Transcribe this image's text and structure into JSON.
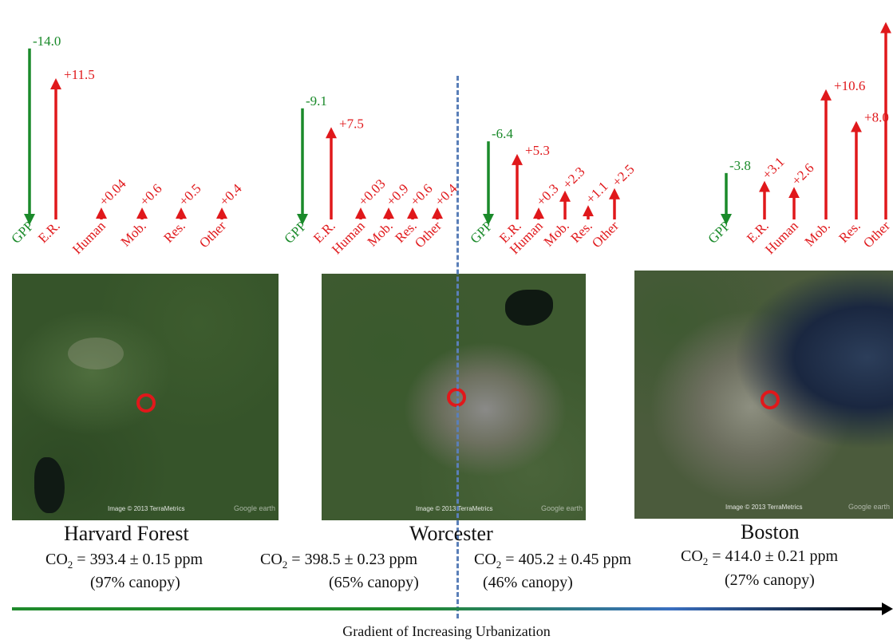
{
  "colors": {
    "uptake": "#1a8a2a",
    "emission": "#e0181b",
    "divider": "#5a7fb8"
  },
  "flux_groups": [
    {
      "site": "harvard",
      "fluxes": [
        {
          "label": "GPP",
          "value": "-14.0",
          "mag": -14.0
        },
        {
          "label": "E.R.",
          "value": "+11.5",
          "mag": 11.5
        },
        {
          "label": "Human",
          "value": "+0.04",
          "mag": 0.04
        },
        {
          "label": "Mob.",
          "value": "+0.6",
          "mag": 0.6
        },
        {
          "label": "Res.",
          "value": "+0.5",
          "mag": 0.5
        },
        {
          "label": "Other",
          "value": "+0.4",
          "mag": 0.4
        }
      ]
    },
    {
      "site": "worcester-a",
      "fluxes": [
        {
          "label": "GPP",
          "value": "-9.1",
          "mag": -9.1
        },
        {
          "label": "E.R.",
          "value": "+7.5",
          "mag": 7.5
        },
        {
          "label": "Human",
          "value": "+0.03",
          "mag": 0.03
        },
        {
          "label": "Mob.",
          "value": "+0.9",
          "mag": 0.9
        },
        {
          "label": "Res.",
          "value": "+0.6",
          "mag": 0.6
        },
        {
          "label": "Other",
          "value": "+0.4",
          "mag": 0.4
        }
      ]
    },
    {
      "site": "worcester-b",
      "fluxes": [
        {
          "label": "GPP",
          "value": "-6.4",
          "mag": -6.4
        },
        {
          "label": "E.R.",
          "value": "+5.3",
          "mag": 5.3
        },
        {
          "label": "Human",
          "value": "+0.3",
          "mag": 0.3
        },
        {
          "label": "Mob.",
          "value": "+2.3",
          "mag": 2.3
        },
        {
          "label": "Res.",
          "value": "+1.1",
          "mag": 1.1
        },
        {
          "label": "Other",
          "value": "+2.5",
          "mag": 2.5
        }
      ]
    },
    {
      "site": "boston",
      "fluxes": [
        {
          "label": "GPP",
          "value": "-3.8",
          "mag": -3.8
        },
        {
          "label": "E.R.",
          "value": "+3.1",
          "mag": 3.1
        },
        {
          "label": "Human",
          "value": "+2.6",
          "mag": 2.6
        },
        {
          "label": "Mob.",
          "value": "+10.6",
          "mag": 10.6
        },
        {
          "label": "Res.",
          "value": "+8.0",
          "mag": 8.0
        },
        {
          "label": "Other",
          "value": "+16.1",
          "mag": 16.1
        }
      ]
    }
  ],
  "sites": {
    "harvard": {
      "name": "Harvard Forest",
      "co2_prefix": "CO",
      "co2_sub": "2",
      "co2_value": " = 393.4 ± 0.15 ppm",
      "canopy": "(97% canopy)",
      "watermark": "Image © 2013 TerraMetrics",
      "watermark2": "Google earth"
    },
    "worcester": {
      "name": "Worcester",
      "watermark": "Image © 2013 TerraMetrics",
      "watermark2": "Google earth",
      "left": {
        "co2_prefix": "CO",
        "co2_sub": "2",
        "co2_value": " = 398.5 ± 0.23 ppm",
        "canopy": "(65% canopy)"
      },
      "right": {
        "co2_prefix": "CO",
        "co2_sub": "2",
        "co2_value": " = 405.2 ± 0.45 ppm",
        "canopy": "(46% canopy)"
      }
    },
    "boston": {
      "name": "Boston",
      "co2_prefix": "CO",
      "co2_sub": "2",
      "co2_value": " = 414.0 ±  0.21 ppm",
      "canopy": "(27% canopy)",
      "watermark": "Image © 2013 TerraMetrics",
      "watermark2": "Google earth"
    }
  },
  "gradient_label": "Gradient of Increasing Urbanization"
}
